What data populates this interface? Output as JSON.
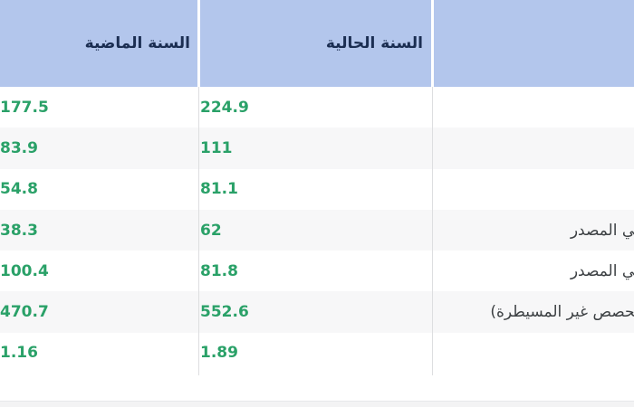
{
  "table": {
    "headers": {
      "labels": "",
      "current": "السنة الحالية",
      "previous": "السنة الماضية"
    },
    "rows": [
      {
        "label": "",
        "current": "224.9",
        "previous": "177.5"
      },
      {
        "label": "",
        "current": "111",
        "previous": "83.9"
      },
      {
        "label": "",
        "current": "81.1",
        "previous": "54.8"
      },
      {
        "label": "ـي المصدر",
        "current": "62",
        "previous": "38.3"
      },
      {
        "label": "ـي المصدر",
        "current": "81.8",
        "previous": "100.4"
      },
      {
        "label": "ـحصص غير المسيطرة)",
        "current": "552.6",
        "previous": "470.7"
      },
      {
        "label": "",
        "current": "1.89",
        "previous": "1.16"
      }
    ],
    "colors": {
      "header_bg": "#b3c6ec",
      "header_text": "#1b2e52",
      "value_green": "#2aa168",
      "alt_row_bg": "#f7f7f8",
      "label_text": "#3c4043",
      "separator": "#dddee0"
    }
  }
}
